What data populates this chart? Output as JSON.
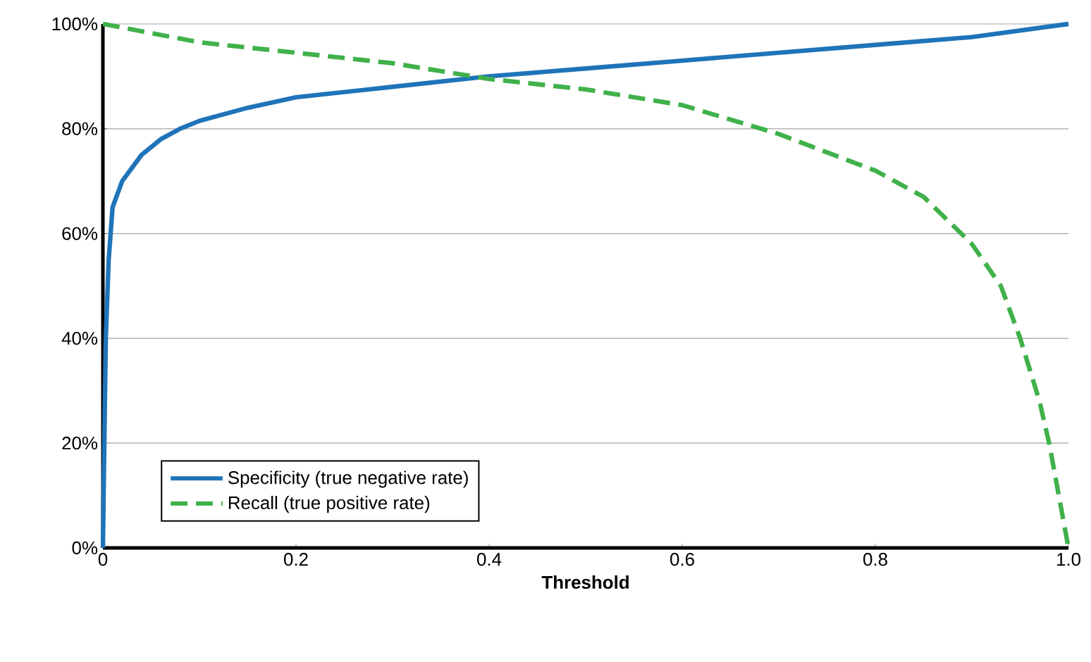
{
  "chart_data": {
    "type": "line",
    "xlabel": "Threshold",
    "xlim": [
      0,
      1
    ],
    "ylim": [
      0,
      100
    ],
    "xticks": [
      0,
      0.2,
      0.4,
      0.6,
      0.8,
      {
        "value": 1,
        "label": "1.0"
      }
    ],
    "yticks": [
      {
        "value": 0,
        "label": "0%"
      },
      {
        "value": 20,
        "label": "20%"
      },
      {
        "value": 40,
        "label": "40%"
      },
      {
        "value": 60,
        "label": "60%"
      },
      {
        "value": 80,
        "label": "80%"
      },
      {
        "value": 100,
        "label": "100%"
      }
    ],
    "grid": "y",
    "legend": "bottom left",
    "marker": "none",
    "series": [
      {
        "name": "Specificity (true negative rate)",
        "color": "#1f74b9",
        "line_style": "solid",
        "x": [
          0,
          0.003,
          0.006,
          0.01,
          0.02,
          0.04,
          0.06,
          0.08,
          0.1,
          0.15,
          0.2,
          0.3,
          0.4,
          0.5,
          0.6,
          0.7,
          0.8,
          0.9,
          1.0
        ],
        "values": [
          0,
          40,
          55,
          65,
          70,
          75,
          78,
          80,
          81.5,
          84,
          86,
          88,
          90,
          91.5,
          93,
          94.5,
          96,
          97.5,
          100
        ]
      },
      {
        "name": "Recall (true positive rate)",
        "color": "#40b14a",
        "line_style": "dashed",
        "x": [
          0,
          0.1,
          0.2,
          0.3,
          0.4,
          0.5,
          0.6,
          0.7,
          0.8,
          0.85,
          0.9,
          0.93,
          0.95,
          0.97,
          0.98,
          0.99,
          1.0
        ],
        "values": [
          100,
          96.5,
          94.5,
          92.5,
          89.5,
          87.5,
          84.5,
          79,
          72,
          67,
          58,
          50,
          40,
          28,
          20,
          10,
          0
        ]
      }
    ]
  }
}
